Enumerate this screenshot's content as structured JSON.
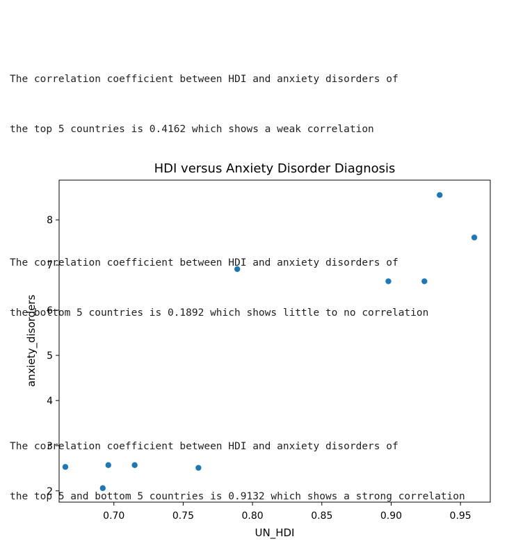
{
  "output": {
    "paragraphs": [
      {
        "line1": "The correlation coefficient between HDI and anxiety disorders of",
        "line2": "the top 5 countries is 0.4162 which shows a weak correlation"
      },
      {
        "line1": "The correlation coefficient between HDI and anxiety disorders of",
        "line2": "the bottom 5 countries is 0.1892 which shows little to no correlation"
      },
      {
        "line1": "The correlation coefficient between HDI and anxiety disorders of",
        "line2": "the top 5 and bottom 5 countries is 0.9132 which shows a strong correlation"
      }
    ]
  },
  "chart_data": {
    "type": "scatter",
    "title": "HDI versus Anxiety Disorder Diagnosis",
    "xlabel": "UN_HDI",
    "ylabel": "anxiety_disorders",
    "xlim": [
      0.6605,
      0.9715
    ],
    "ylim": [
      1.75,
      8.88
    ],
    "xticks": [
      0.7,
      0.75,
      0.8,
      0.85,
      0.9,
      0.95
    ],
    "xtick_labels": [
      "0.70",
      "0.75",
      "0.80",
      "0.85",
      "0.90",
      "0.95"
    ],
    "yticks": [
      2,
      3,
      4,
      5,
      6,
      7,
      8
    ],
    "ytick_labels": [
      "2",
      "3",
      "4",
      "5",
      "6",
      "7",
      "8"
    ],
    "grid": false,
    "marker_color": "#1f77b4",
    "points": [
      {
        "x": 0.665,
        "y": 2.53
      },
      {
        "x": 0.692,
        "y": 2.06
      },
      {
        "x": 0.696,
        "y": 2.57
      },
      {
        "x": 0.715,
        "y": 2.57
      },
      {
        "x": 0.761,
        "y": 2.51
      },
      {
        "x": 0.789,
        "y": 6.91
      },
      {
        "x": 0.898,
        "y": 6.64
      },
      {
        "x": 0.924,
        "y": 6.64
      },
      {
        "x": 0.935,
        "y": 8.55
      },
      {
        "x": 0.96,
        "y": 7.61
      }
    ]
  }
}
